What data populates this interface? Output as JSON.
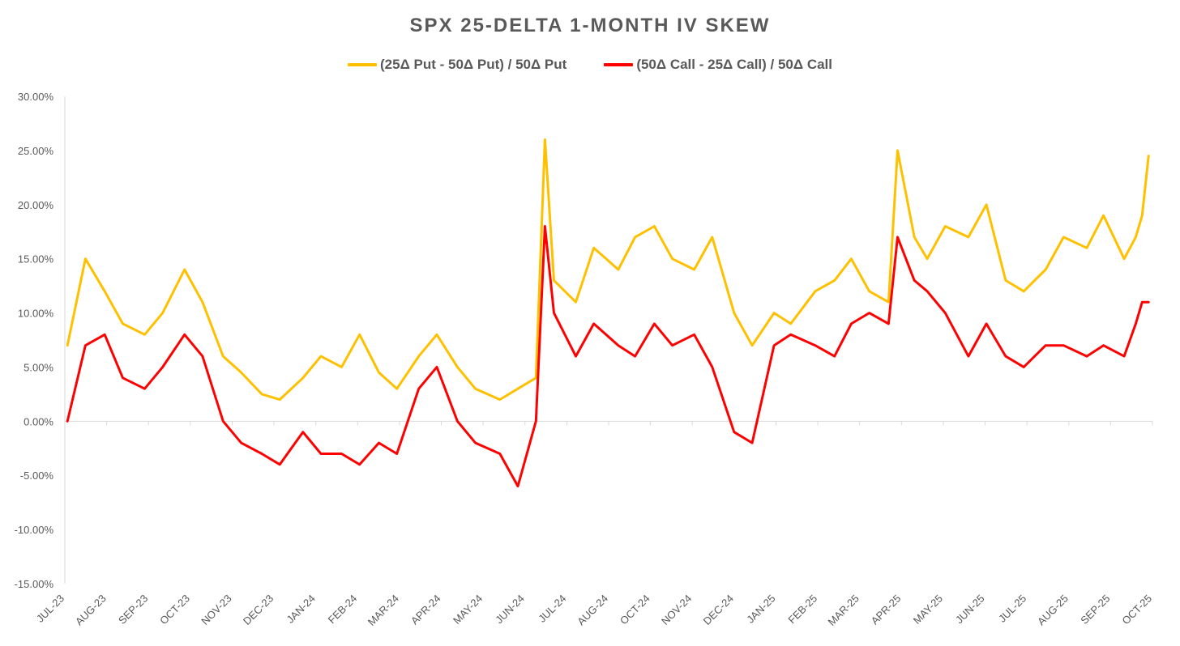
{
  "chart_data": {
    "type": "line",
    "title": "SPX 25-DELTA 1-MONTH IV SKEW",
    "xlabel": "",
    "ylabel": "",
    "ylim": [
      -0.15,
      0.3
    ],
    "y_ticks": [
      "30.00%",
      "25.00%",
      "20.00%",
      "15.00%",
      "10.00%",
      "5.00%",
      "0.00%",
      "-5.00%",
      "-10.00%",
      "-15.00%"
    ],
    "x_ticks": [
      "JUL-23",
      "AUG-23",
      "SEP-23",
      "OCT-23",
      "NOV-23",
      "DEC-23",
      "JAN-24",
      "FEB-24",
      "MAR-24",
      "APR-24",
      "MAY-24",
      "JUN-24",
      "JUL-24",
      "AUG-24",
      "OCT-24",
      "NOV-24",
      "DEC-24",
      "JAN-25",
      "FEB-25",
      "MAR-25",
      "APR-25",
      "MAY-25",
      "JUN-25",
      "JUL-25",
      "AUG-25",
      "SEP-25",
      "OCT-25"
    ],
    "legend_position": "top",
    "grid": false,
    "series": [
      {
        "name": "(25Δ Put - 50Δ Put) / 50Δ Put",
        "color": "#FFC000",
        "x": [
          "2023-07-03",
          "2023-07-17",
          "2023-08-01",
          "2023-08-15",
          "2023-09-01",
          "2023-09-15",
          "2023-10-02",
          "2023-10-16",
          "2023-11-01",
          "2023-11-15",
          "2023-12-01",
          "2023-12-15",
          "2024-01-02",
          "2024-01-16",
          "2024-02-01",
          "2024-02-15",
          "2024-03-01",
          "2024-03-15",
          "2024-04-01",
          "2024-04-15",
          "2024-05-01",
          "2024-05-15",
          "2024-06-03",
          "2024-06-17",
          "2024-07-01",
          "2024-07-08",
          "2024-07-15",
          "2024-08-01",
          "2024-08-15",
          "2024-09-03",
          "2024-09-16",
          "2024-10-01",
          "2024-10-15",
          "2024-11-01",
          "2024-11-15",
          "2024-12-02",
          "2024-12-16",
          "2025-01-02",
          "2025-01-15",
          "2025-02-03",
          "2025-02-18",
          "2025-03-03",
          "2025-03-17",
          "2025-04-01",
          "2025-04-08",
          "2025-04-21",
          "2025-05-01",
          "2025-05-15",
          "2025-06-02",
          "2025-06-16",
          "2025-07-01",
          "2025-07-15",
          "2025-08-01",
          "2025-08-15",
          "2025-09-02",
          "2025-09-15",
          "2025-10-01",
          "2025-10-10",
          "2025-10-15",
          "2025-10-20"
        ],
        "values": [
          0.07,
          0.15,
          0.12,
          0.09,
          0.08,
          0.1,
          0.14,
          0.11,
          0.06,
          0.045,
          0.025,
          0.02,
          0.04,
          0.06,
          0.05,
          0.08,
          0.045,
          0.03,
          0.06,
          0.08,
          0.05,
          0.03,
          0.02,
          0.03,
          0.04,
          0.26,
          0.13,
          0.11,
          0.16,
          0.14,
          0.17,
          0.18,
          0.15,
          0.14,
          0.17,
          0.1,
          0.07,
          0.1,
          0.09,
          0.12,
          0.13,
          0.15,
          0.12,
          0.11,
          0.25,
          0.17,
          0.15,
          0.18,
          0.17,
          0.2,
          0.13,
          0.12,
          0.14,
          0.17,
          0.16,
          0.19,
          0.15,
          0.17,
          0.19,
          0.245
        ]
      },
      {
        "name": "(50Δ Call - 25Δ Call) / 50Δ Call",
        "color": "#FF0000",
        "x": [
          "2023-07-03",
          "2023-07-17",
          "2023-08-01",
          "2023-08-15",
          "2023-09-01",
          "2023-09-15",
          "2023-10-02",
          "2023-10-16",
          "2023-11-01",
          "2023-11-15",
          "2023-12-01",
          "2023-12-15",
          "2024-01-02",
          "2024-01-16",
          "2024-02-01",
          "2024-02-15",
          "2024-03-01",
          "2024-03-15",
          "2024-04-01",
          "2024-04-15",
          "2024-05-01",
          "2024-05-15",
          "2024-06-03",
          "2024-06-17",
          "2024-07-01",
          "2024-07-08",
          "2024-07-15",
          "2024-08-01",
          "2024-08-15",
          "2024-09-03",
          "2024-09-16",
          "2024-10-01",
          "2024-10-15",
          "2024-11-01",
          "2024-11-15",
          "2024-12-02",
          "2024-12-16",
          "2025-01-02",
          "2025-01-15",
          "2025-02-03",
          "2025-02-18",
          "2025-03-03",
          "2025-03-17",
          "2025-04-01",
          "2025-04-08",
          "2025-04-21",
          "2025-05-01",
          "2025-05-15",
          "2025-06-02",
          "2025-06-16",
          "2025-07-01",
          "2025-07-15",
          "2025-08-01",
          "2025-08-15",
          "2025-09-02",
          "2025-09-15",
          "2025-10-01",
          "2025-10-10",
          "2025-10-15",
          "2025-10-20"
        ],
        "values": [
          0.0,
          0.07,
          0.08,
          0.04,
          0.03,
          0.05,
          0.08,
          0.06,
          0.0,
          -0.02,
          -0.03,
          -0.04,
          -0.01,
          -0.03,
          -0.03,
          -0.04,
          -0.02,
          -0.03,
          0.03,
          0.05,
          0.0,
          -0.02,
          -0.03,
          -0.06,
          0.0,
          0.18,
          0.1,
          0.06,
          0.09,
          0.07,
          0.06,
          0.09,
          0.07,
          0.08,
          0.05,
          -0.01,
          -0.02,
          0.07,
          0.08,
          0.07,
          0.06,
          0.09,
          0.1,
          0.09,
          0.17,
          0.13,
          0.12,
          0.1,
          0.06,
          0.09,
          0.06,
          0.05,
          0.07,
          0.07,
          0.06,
          0.07,
          0.06,
          0.09,
          0.11,
          0.11
        ]
      }
    ]
  }
}
